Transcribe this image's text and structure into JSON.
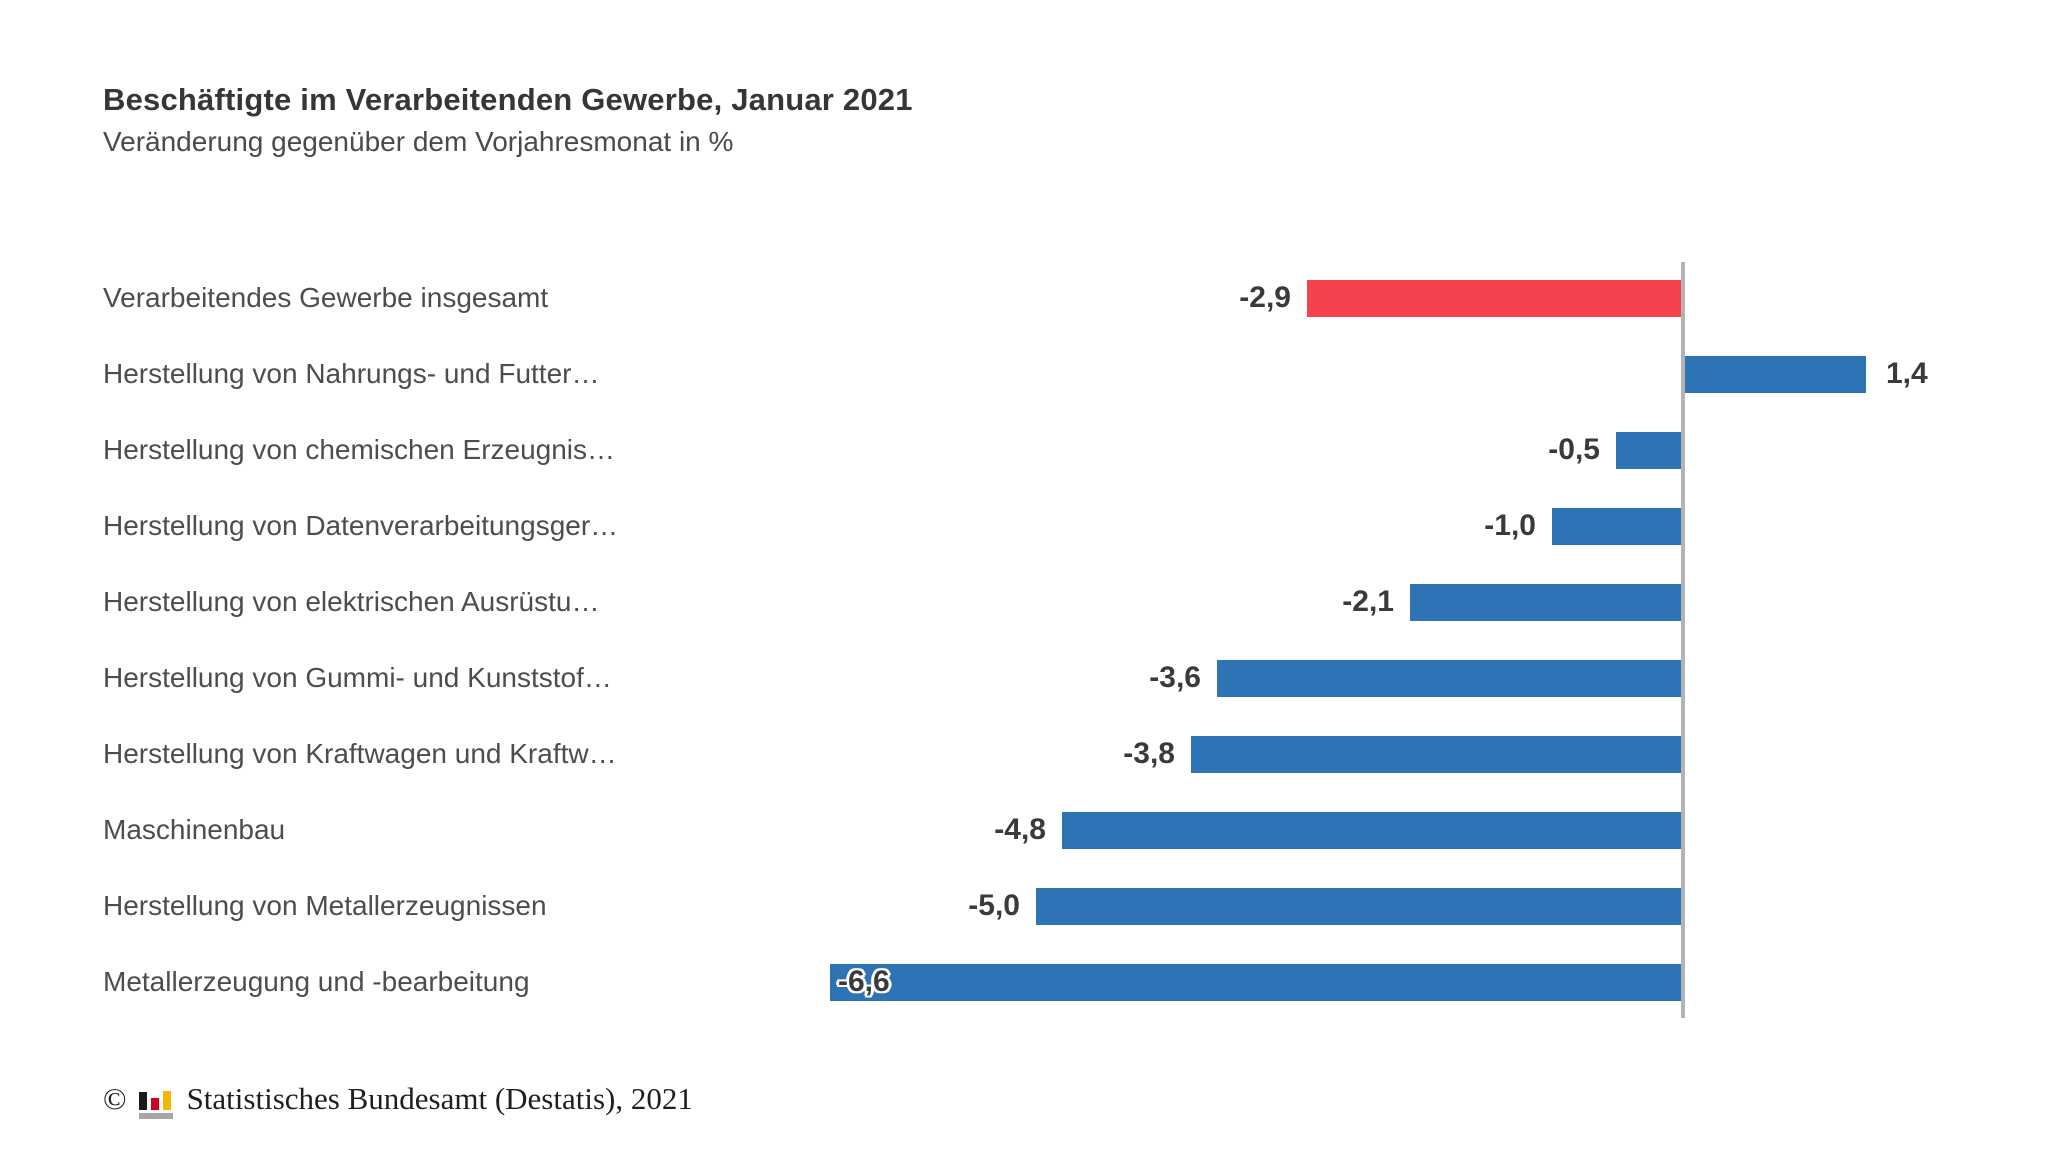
{
  "header": {
    "title": "Beschäftigte im Verarbeitenden Gewerbe, Januar 2021",
    "subtitle": "Veränderung gegenüber dem Vorjahresmonat in %"
  },
  "chart_data": {
    "type": "bar",
    "orientation": "horizontal",
    "title": "Beschäftigte im Verarbeitenden Gewerbe, Januar 2021",
    "subtitle": "Veränderung gegenüber dem Vorjahresmonat in %",
    "unit": "%",
    "categories": [
      "Verarbeitendes Gewerbe insgesamt",
      "Herstellung von Nahrungs- und Futter…",
      "Herstellung von chemischen Erzeugnis…",
      "Herstellung von Datenverarbeitungsger…",
      "Herstellung von elektrischen Ausrüstu…",
      "Herstellung von Gummi- und Kunststof…",
      "Herstellung von Kraftwagen und Kraftw…",
      "Maschinenbau",
      "Herstellung von Metallerzeugnissen",
      "Metallerzeugung und -bearbeitung"
    ],
    "values": [
      -2.9,
      1.4,
      -0.5,
      -1.0,
      -2.1,
      -3.6,
      -3.8,
      -4.8,
      -5.0,
      -6.6
    ],
    "value_labels": [
      "-2,9",
      "1,4",
      "-0,5",
      "-1,0",
      "-2,1",
      "-3,6",
      "-3,8",
      "-4,8",
      "-5,0",
      "-6,6"
    ],
    "highlight_index": 0,
    "inside_label_indices": [
      9
    ],
    "colors": {
      "highlight_bar": "#f4424e",
      "default_bar": "#2e74b5",
      "zero_line": "#b3b3b3",
      "value_text": "#3a3a3a",
      "category_text": "#4d4d4d"
    },
    "xlim": [
      -6.6,
      1.4
    ],
    "grid": false,
    "legend": false,
    "value_label_position": "outside-end, inside-start when bar too long"
  },
  "footer": {
    "copyright_symbol": "©",
    "logo_icon": "destatis-mini-barchart-icon",
    "source_text": "Statistisches Bundesamt (Destatis), 2021"
  }
}
